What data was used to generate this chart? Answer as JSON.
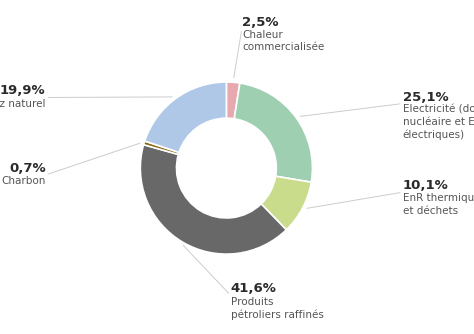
{
  "slices": [
    {
      "label": "Chaleur\ncommercialisée",
      "pct": 2.5,
      "color": "#e8a8b0"
    },
    {
      "label": "Electricité (dont\nnucléaire et EnR\nélectriques)",
      "pct": 25.1,
      "color": "#9dcfb0"
    },
    {
      "label": "EnR thermiques\net déchets",
      "pct": 10.1,
      "color": "#c8dc8c"
    },
    {
      "label": "Produits\npétroliers raffinés",
      "pct": 41.6,
      "color": "#686868"
    },
    {
      "label": "Charbon",
      "pct": 0.7,
      "color": "#8b6914"
    },
    {
      "label": "Gaz naturel",
      "pct": 19.9,
      "color": "#b0c8e8"
    }
  ],
  "pct_labels": [
    "2,5%",
    "25,1%",
    "10,1%",
    "41,6%",
    "0,7%",
    "19,9%"
  ],
  "background_color": "#ffffff",
  "start_angle": 90,
  "label_fontsize": 7.5,
  "pct_fontsize": 9.5,
  "text_color": "#2a2a2a",
  "label_color": "#555555"
}
